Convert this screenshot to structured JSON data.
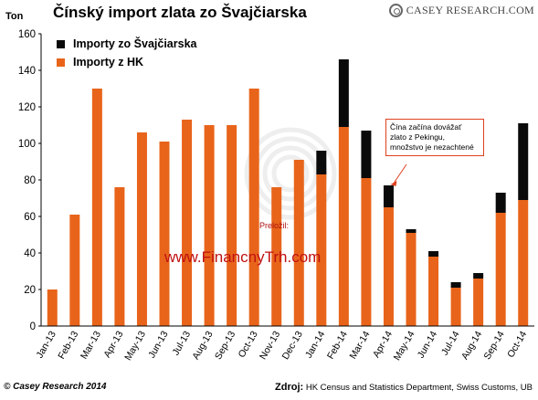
{
  "title": "Čínský import zlata zo Švajčiarska",
  "y_unit": "Ton",
  "logo_text": "Casey Research.com",
  "legend": {
    "swiss_label": "Importy zo Švajčiarska",
    "hk_label": "Importy z HK"
  },
  "annotation": "Čína začína dovážať zlato z Pekingu, množstvo je nezachtené",
  "translator_label": "Preložil:",
  "website": "www.FinancnyTrh.com",
  "copyright": "© Casey Research 2014",
  "source_label": "Zdroj:",
  "source_text": "HK Census and Statistics Department, Swiss Customs, UB",
  "colors": {
    "hk": "#e8641a",
    "swiss": "#0a0a0a"
  },
  "chart_data": {
    "type": "bar",
    "stacked": true,
    "categories": [
      "Jan-13",
      "Feb-13",
      "Mar-13",
      "Apr-13",
      "May-13",
      "Jun-13",
      "Jul-13",
      "Aug-13",
      "Sep-13",
      "Oct-13",
      "Nov-13",
      "Dec-13",
      "Jan-14",
      "Feb-14",
      "Mar-14",
      "Apr-14",
      "May-14",
      "Jun-14",
      "Jul-14",
      "Aug-14",
      "Sep-14",
      "Oct-14"
    ],
    "series": [
      {
        "name": "Importy z HK",
        "values": [
          20,
          61,
          130,
          76,
          106,
          101,
          113,
          110,
          110,
          130,
          76,
          91,
          83,
          109,
          81,
          65,
          51,
          38,
          21,
          26,
          62,
          69
        ]
      },
      {
        "name": "Importy zo Švajčiarska",
        "values": [
          0,
          0,
          0,
          0,
          0,
          0,
          0,
          0,
          0,
          0,
          0,
          0,
          13,
          37,
          26,
          12,
          2,
          3,
          3,
          3,
          11,
          42
        ]
      }
    ],
    "ylabel": "Ton",
    "ylim": [
      0,
      160
    ],
    "yticks": [
      0,
      20,
      40,
      60,
      80,
      100,
      120,
      140,
      160
    ],
    "grid": false,
    "legend_position": "top-left"
  }
}
